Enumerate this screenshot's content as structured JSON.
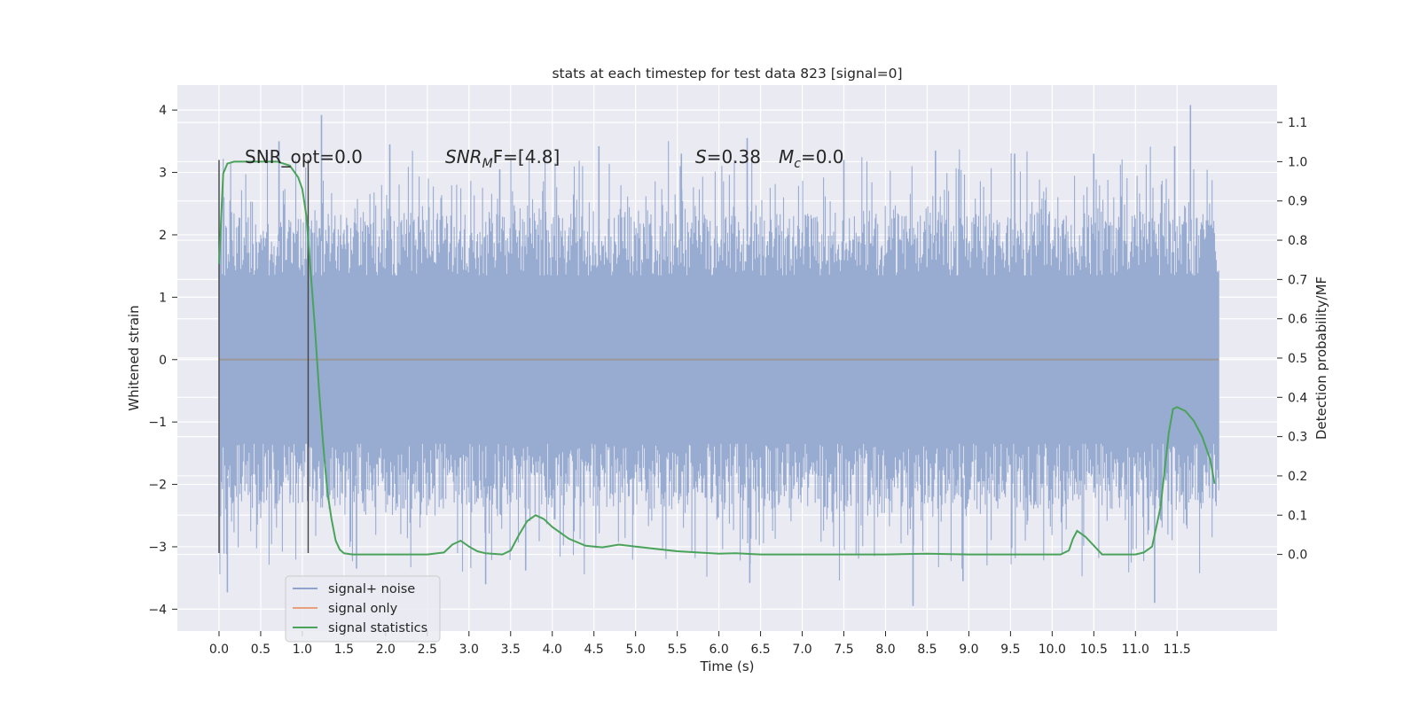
{
  "chart_data": {
    "type": "line",
    "title": "stats at each timestep for test data 823 [signal=0]",
    "xlabel": "Time (s)",
    "ylabel": "Whitened strain",
    "y2label": "Detection probability/MF",
    "xlim": [
      -0.5,
      12.7
    ],
    "ylim": [
      -4.35,
      4.4
    ],
    "y2lim": [
      -0.195,
      1.195
    ],
    "x_ticks": [
      "0.0",
      "0.5",
      "1.0",
      "1.5",
      "2.0",
      "2.5",
      "3.0",
      "3.5",
      "4.0",
      "4.5",
      "5.0",
      "5.5",
      "6.0",
      "6.5",
      "7.0",
      "7.5",
      "8.0",
      "8.5",
      "9.0",
      "9.5",
      "10.0",
      "10.5",
      "11.0",
      "11.5"
    ],
    "y_ticks": [
      "−4",
      "−3",
      "−2",
      "−1",
      "0",
      "1",
      "2",
      "3",
      "4"
    ],
    "y2_ticks": [
      "0.0",
      "0.1",
      "0.2",
      "0.3",
      "0.4",
      "0.5",
      "0.6",
      "0.7",
      "0.8",
      "0.9",
      "1.0",
      "1.1"
    ],
    "grid": true,
    "legend_position": "lower-left",
    "annotations": {
      "snr_opt": "SNR_opt=0.0",
      "snr_mf_main": "SNR",
      "snr_mf_sub": "M",
      "snr_mf_rest": "F=[4.8]",
      "s_var": "S",
      "s_val": "=0.38",
      "mc_var": "M",
      "mc_sub": "c",
      "mc_val": "=0.0"
    },
    "markers_x": [
      0.0,
      1.07
    ],
    "markers_y": [
      -3.1,
      3.2
    ],
    "series": [
      {
        "name": "signal+ noise",
        "color": "#8fa3cc",
        "description_x_range": [
          0.0,
          12.0
        ],
        "dense_band": [
          -1.95,
          1.95
        ],
        "peaks": [
          {
            "x": 0.72,
            "y": 3.5
          },
          {
            "x": 1.23,
            "y": 3.92
          },
          {
            "x": 2.05,
            "y": 3.45
          },
          {
            "x": 3.37,
            "y": 3.05
          },
          {
            "x": 4.56,
            "y": 3.42
          },
          {
            "x": 5.55,
            "y": 3.3
          },
          {
            "x": 6.34,
            "y": 3.55
          },
          {
            "x": 7.5,
            "y": 3.2
          },
          {
            "x": 8.6,
            "y": 3.35
          },
          {
            "x": 9.55,
            "y": 3.3
          },
          {
            "x": 10.5,
            "y": 3.3
          },
          {
            "x": 11.47,
            "y": 3.42
          },
          {
            "x": 11.66,
            "y": 4.08
          }
        ],
        "troughs": [
          {
            "x": 0.1,
            "y": -3.73
          },
          {
            "x": 1.65,
            "y": -3.35
          },
          {
            "x": 3.2,
            "y": -3.6
          },
          {
            "x": 3.68,
            "y": -3.38
          },
          {
            "x": 6.37,
            "y": -3.58
          },
          {
            "x": 8.33,
            "y": -3.95
          },
          {
            "x": 8.93,
            "y": -3.55
          },
          {
            "x": 11.23,
            "y": -3.9
          }
        ]
      },
      {
        "name": "signal only",
        "color": "#e8a07c",
        "x": [
          0.0,
          12.0
        ],
        "y": [
          0.0,
          0.0
        ]
      },
      {
        "name": "signal statistics",
        "color": "#4aa35a",
        "axis": "right",
        "x": [
          0.0,
          0.05,
          0.1,
          0.18,
          0.3,
          0.5,
          0.7,
          0.85,
          0.95,
          1.0,
          1.05,
          1.1,
          1.15,
          1.2,
          1.25,
          1.3,
          1.35,
          1.4,
          1.45,
          1.5,
          1.6,
          1.8,
          2.0,
          2.5,
          2.7,
          2.8,
          2.9,
          3.0,
          3.1,
          3.2,
          3.4,
          3.5,
          3.6,
          3.7,
          3.8,
          3.9,
          4.0,
          4.2,
          4.4,
          4.6,
          4.8,
          5.0,
          5.5,
          6.0,
          6.2,
          6.5,
          7.0,
          7.5,
          8.0,
          8.5,
          9.0,
          9.5,
          10.0,
          10.1,
          10.2,
          10.25,
          10.3,
          10.4,
          10.6,
          10.9,
          11.0,
          11.1,
          11.2,
          11.3,
          11.4,
          11.45,
          11.5,
          11.6,
          11.7,
          11.8,
          11.9,
          11.95
        ],
        "y": [
          0.74,
          0.97,
          0.995,
          1.0,
          1.0,
          1.0,
          1.0,
          0.99,
          0.96,
          0.93,
          0.86,
          0.72,
          0.58,
          0.42,
          0.28,
          0.16,
          0.09,
          0.035,
          0.012,
          0.003,
          0.0,
          0.0,
          0.0,
          0.0,
          0.005,
          0.025,
          0.035,
          0.02,
          0.008,
          0.003,
          0.0,
          0.01,
          0.05,
          0.085,
          0.1,
          0.09,
          0.07,
          0.04,
          0.022,
          0.018,
          0.025,
          0.02,
          0.008,
          0.002,
          0.003,
          0.0,
          0.0,
          0.0,
          0.0,
          0.002,
          0.0,
          0.0,
          0.0,
          0.0,
          0.01,
          0.04,
          0.06,
          0.045,
          0.0,
          0.0,
          0.0,
          0.005,
          0.02,
          0.12,
          0.31,
          0.37,
          0.375,
          0.365,
          0.34,
          0.3,
          0.24,
          0.18
        ]
      }
    ]
  }
}
